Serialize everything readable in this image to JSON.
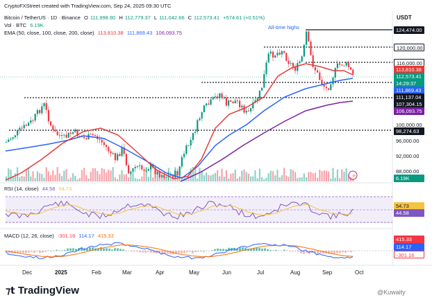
{
  "header": {
    "caption": "CryptoFXStreet created with TradingView.com, Sep 24, 2025 09:30 UTC",
    "symbol": "Bitcoin / TetherUS · 1D · Binance",
    "ohlc": {
      "o_label": "O",
      "o": "111,998.80",
      "h_label": "H",
      "h": "112,779.37",
      "l_label": "L",
      "l": "111,042.66",
      "c_label": "C",
      "c": "112,573.41",
      "chg": "+574.61 (+0.51%)"
    },
    "vol": {
      "label": "Vol · BTC",
      "value": "6.19K"
    },
    "ema": {
      "label": "EMA (50, close, 100, close, 200, close)",
      "v50": "113,810.38",
      "v100": "111,869.43",
      "v200": "106,093.75"
    }
  },
  "currency": "USDT",
  "annotation": "All-time highs",
  "price_axis": [
    "100,000.00",
    "96,000.00",
    "92,000.00",
    "88,000.00"
  ],
  "price_tags": [
    {
      "text": "124,474.00",
      "style": "dark"
    },
    {
      "text": "120,000.00",
      "style": "outline"
    },
    {
      "text": "116,000.00",
      "style": "outline"
    },
    {
      "text": "113,810.38",
      "style": "red"
    },
    {
      "text": "112,573.41",
      "style": "teal"
    },
    {
      "text": "14:29:37",
      "style": "teal"
    },
    {
      "text": "111,869.43",
      "style": "blue"
    },
    {
      "text": "111,137.04",
      "style": "dark"
    },
    {
      "text": "107,304.15",
      "style": "dark"
    },
    {
      "text": "106,093.75",
      "style": "purple"
    },
    {
      "text": "98,274.63",
      "style": "dark"
    },
    {
      "text": "6.19K",
      "style": "teal"
    }
  ],
  "rsi": {
    "label": "RSI (14, close)",
    "v1": "44.58",
    "v2": "54.73",
    "tags": [
      "54.73",
      "44.58"
    ]
  },
  "macd": {
    "label": "MACD (12, 26, close)",
    "v1": "-301.16",
    "v2": "114.17",
    "v3": "415.33",
    "tags": [
      "415.33",
      "114.17",
      "-301.16"
    ]
  },
  "time_axis": [
    "Dec",
    "2025",
    "Feb",
    "Mar",
    "Apr",
    "May",
    "Jun",
    "Jul",
    "Aug",
    "Sep",
    "Oct"
  ],
  "brand": "TradingView",
  "watermark": "@Kuwaity",
  "colors": {
    "ema50": "#e53935",
    "ema100": "#2962ff",
    "ema200": "#7b1fa2",
    "up": "#089981",
    "down": "#f23645",
    "rsi": "#7e57c2",
    "signal": "#f5c342"
  }
}
